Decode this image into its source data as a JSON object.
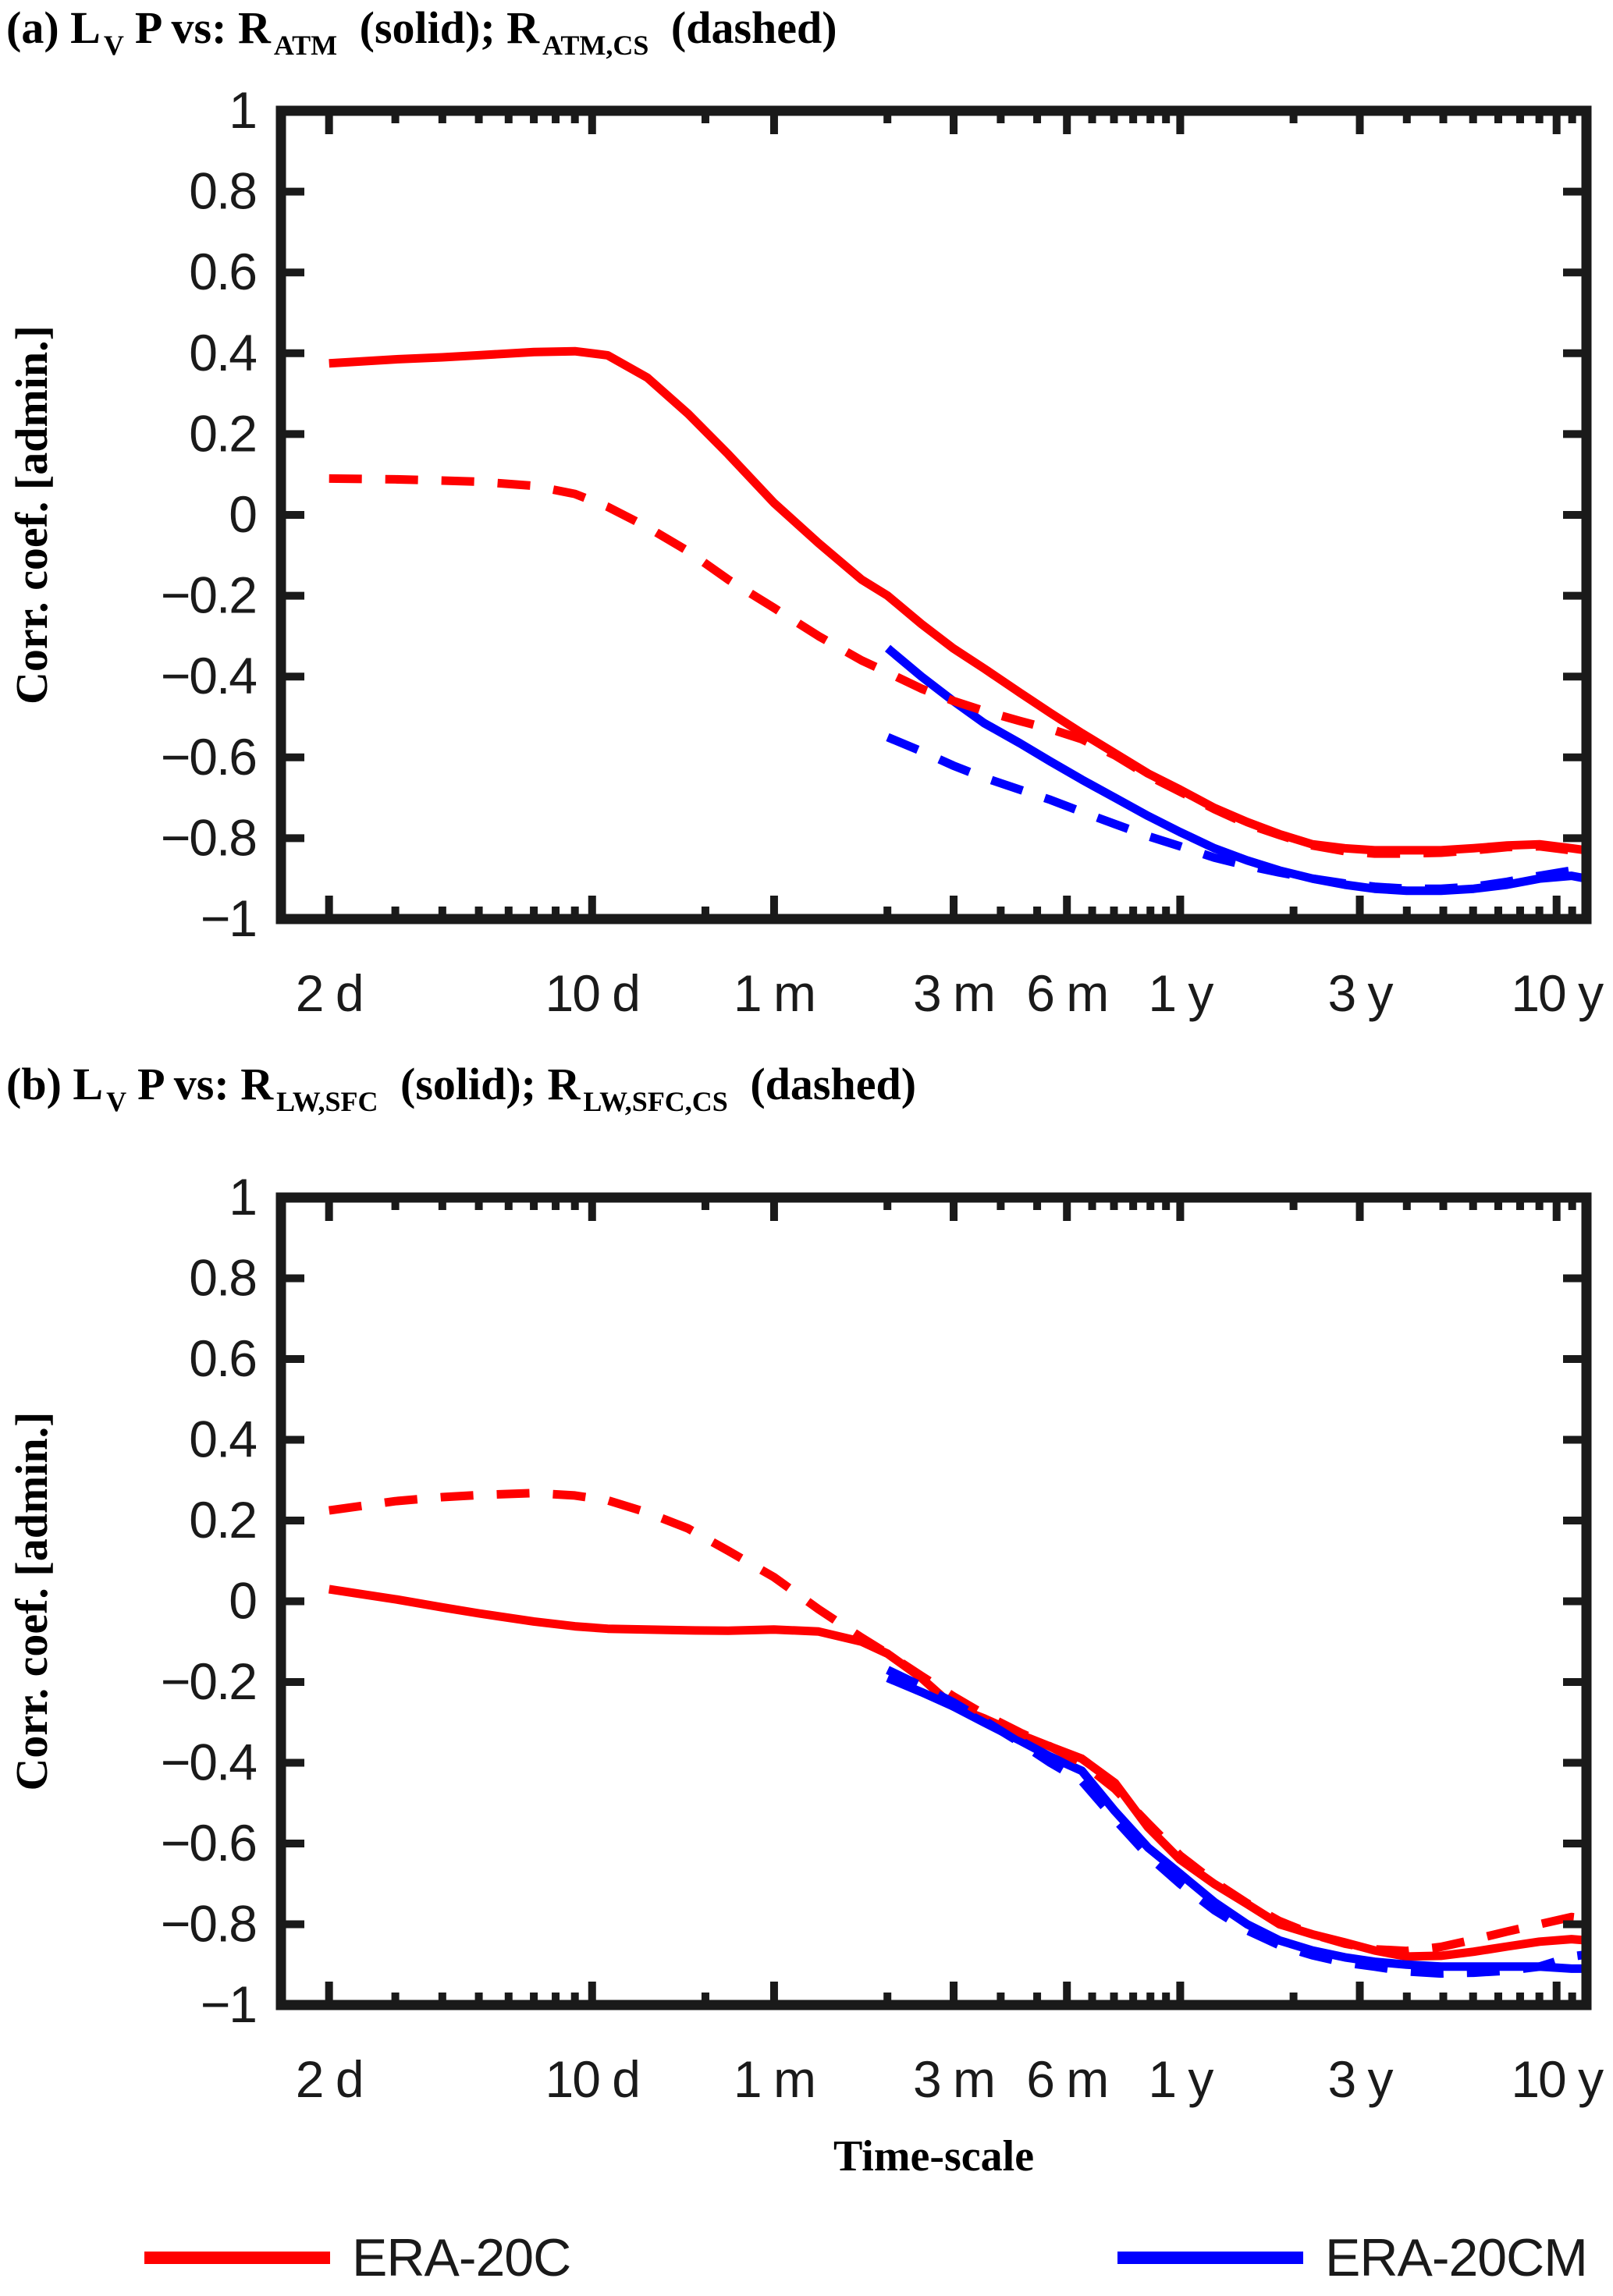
{
  "xlabel": "Time-scale",
  "legend": {
    "position": "bottom",
    "items": [
      {
        "label": "ERA-20C",
        "color": "#ff0000"
      },
      {
        "label": "ERA-20CM",
        "color": "#0000ff"
      }
    ]
  },
  "axis_color": "#1a1a1a",
  "chart_data": [
    {
      "type": "line",
      "panel_label": "(a)",
      "title_segments": [
        {
          "text": "(a) L"
        },
        {
          "text": "V",
          "sub": true
        },
        {
          "text": "P vs: R"
        },
        {
          "text": "ATM",
          "sub": true
        },
        {
          "text": " (solid); R"
        },
        {
          "text": "ATM,CS",
          "sub": true
        },
        {
          "text": " (dashed)"
        }
      ],
      "ylabel": "Corr. coef. [admin.]",
      "x_scale": "log",
      "x_unit": "days",
      "xlim": [
        1.49,
        4385
      ],
      "ylim": [
        -1,
        1
      ],
      "grid": false,
      "x_major_ticks": [
        {
          "t": 2,
          "label": "2 d"
        },
        {
          "t": 10,
          "label": "10 d"
        },
        {
          "t": 30.44,
          "label": "1 m"
        },
        {
          "t": 91.31,
          "label": "3 m"
        },
        {
          "t": 182.62,
          "label": "6 m"
        },
        {
          "t": 365.25,
          "label": "1 y"
        },
        {
          "t": 1095.75,
          "label": "3 y"
        },
        {
          "t": 3652.5,
          "label": "10 y"
        }
      ],
      "x_minor_ticks": [
        3,
        4,
        5,
        6,
        7,
        8,
        9,
        20,
        60.9,
        121.8,
        152.2,
        213.1,
        243.5,
        273.9,
        304.4,
        334.8,
        730.5,
        1461,
        1826.25,
        2191.5,
        2556.75,
        2922,
        3287.25,
        4017.75,
        4383
      ],
      "y_ticks": [
        {
          "v": 1,
          "label": "1"
        },
        {
          "v": 0.8,
          "label": "0.8"
        },
        {
          "v": 0.6,
          "label": "0.6"
        },
        {
          "v": 0.4,
          "label": "0.4"
        },
        {
          "v": 0.2,
          "label": "0.2"
        },
        {
          "v": 0,
          "label": "0"
        },
        {
          "v": -0.2,
          "label": "−0.2"
        },
        {
          "v": -0.4,
          "label": "−0.4"
        },
        {
          "v": -0.6,
          "label": "−0.6"
        },
        {
          "v": -0.8,
          "label": "−0.8"
        },
        {
          "v": -1,
          "label": "−1"
        }
      ],
      "series": [
        {
          "name": "ERA-20C vs R_ATM",
          "color": "#ff0000",
          "style": "solid",
          "x": [
            2,
            3,
            4,
            5,
            7,
            9,
            11,
            14,
            18,
            23,
            30.4,
            40,
            52,
            61,
            75,
            91,
            110,
            137,
            165,
            200,
            245,
            300,
            365,
            450,
            550,
            670,
            820,
            1000,
            1200,
            1460,
            1800,
            2200,
            2700,
            3290,
            4000,
            4385
          ],
          "y": [
            0.375,
            0.385,
            0.39,
            0.395,
            0.403,
            0.405,
            0.395,
            0.34,
            0.25,
            0.15,
            0.03,
            -0.07,
            -0.16,
            -0.2,
            -0.27,
            -0.33,
            -0.38,
            -0.44,
            -0.49,
            -0.54,
            -0.59,
            -0.64,
            -0.68,
            -0.725,
            -0.76,
            -0.79,
            -0.815,
            -0.825,
            -0.83,
            -0.83,
            -0.83,
            -0.825,
            -0.818,
            -0.815,
            -0.825,
            -0.83
          ]
        },
        {
          "name": "ERA-20CM vs R_ATM",
          "color": "#0000ff",
          "style": "solid",
          "x": [
            61,
            75,
            91,
            110,
            137,
            165,
            200,
            245,
            300,
            365,
            450,
            550,
            670,
            820,
            1000,
            1200,
            1460,
            1800,
            2200,
            2700,
            3290,
            4000,
            4385
          ],
          "y": [
            -0.33,
            -0.4,
            -0.46,
            -0.515,
            -0.565,
            -0.61,
            -0.655,
            -0.7,
            -0.745,
            -0.785,
            -0.825,
            -0.855,
            -0.88,
            -0.9,
            -0.915,
            -0.925,
            -0.93,
            -0.93,
            -0.925,
            -0.915,
            -0.9,
            -0.893,
            -0.9
          ]
        },
        {
          "name": "ERA-20C vs R_ATM,CS",
          "color": "#ff0000",
          "style": "dashed",
          "x": [
            2,
            3,
            4,
            5,
            7,
            9,
            11,
            14,
            18,
            23,
            30.4,
            40,
            52,
            61,
            75,
            91,
            110,
            137,
            165,
            200,
            245,
            300,
            365,
            450,
            550,
            670,
            820,
            1000,
            1200,
            1460,
            1800,
            2200,
            2700,
            3290,
            4000,
            4385
          ],
          "y": [
            0.09,
            0.088,
            0.085,
            0.082,
            0.072,
            0.052,
            0.02,
            -0.03,
            -0.09,
            -0.16,
            -0.23,
            -0.3,
            -0.36,
            -0.39,
            -0.43,
            -0.46,
            -0.485,
            -0.51,
            -0.53,
            -0.555,
            -0.595,
            -0.645,
            -0.685,
            -0.728,
            -0.765,
            -0.792,
            -0.818,
            -0.832,
            -0.838,
            -0.838,
            -0.836,
            -0.83,
            -0.822,
            -0.82,
            -0.83,
            -0.836
          ]
        },
        {
          "name": "ERA-20CM vs R_ATM,CS",
          "color": "#0000ff",
          "style": "dashed",
          "x": [
            61,
            75,
            91,
            110,
            137,
            165,
            200,
            245,
            300,
            365,
            450,
            550,
            670,
            820,
            1000,
            1200,
            1460,
            1800,
            2200,
            2700,
            3290,
            4000,
            4385
          ],
          "y": [
            -0.55,
            -0.585,
            -0.62,
            -0.65,
            -0.68,
            -0.705,
            -0.735,
            -0.765,
            -0.795,
            -0.82,
            -0.848,
            -0.868,
            -0.885,
            -0.9,
            -0.912,
            -0.92,
            -0.925,
            -0.925,
            -0.92,
            -0.908,
            -0.893,
            -0.88,
            -0.882
          ]
        }
      ]
    },
    {
      "type": "line",
      "panel_label": "(b)",
      "title_segments": [
        {
          "text": "(b) L"
        },
        {
          "text": "V",
          "sub": true
        },
        {
          "text": "P vs: R"
        },
        {
          "text": "LW,SFC",
          "sub": true
        },
        {
          "text": " (solid); R"
        },
        {
          "text": "LW,SFC,CS",
          "sub": true
        },
        {
          "text": " (dashed)"
        }
      ],
      "ylabel": "Corr. coef. [admin.]",
      "x_scale": "log",
      "x_unit": "days",
      "xlim": [
        1.49,
        4385
      ],
      "ylim": [
        -1,
        1
      ],
      "grid": false,
      "x_major_ticks": [
        {
          "t": 2,
          "label": "2 d"
        },
        {
          "t": 10,
          "label": "10 d"
        },
        {
          "t": 30.44,
          "label": "1 m"
        },
        {
          "t": 91.31,
          "label": "3 m"
        },
        {
          "t": 182.62,
          "label": "6 m"
        },
        {
          "t": 365.25,
          "label": "1 y"
        },
        {
          "t": 1095.75,
          "label": "3 y"
        },
        {
          "t": 3652.5,
          "label": "10 y"
        }
      ],
      "x_minor_ticks": [
        3,
        4,
        5,
        6,
        7,
        8,
        9,
        20,
        60.9,
        121.8,
        152.2,
        213.1,
        243.5,
        273.9,
        304.4,
        334.8,
        730.5,
        1461,
        1826.25,
        2191.5,
        2556.75,
        2922,
        3287.25,
        4017.75,
        4383
      ],
      "y_ticks": [
        {
          "v": 1,
          "label": "1"
        },
        {
          "v": 0.8,
          "label": "0.8"
        },
        {
          "v": 0.6,
          "label": "0.6"
        },
        {
          "v": 0.4,
          "label": "0.4"
        },
        {
          "v": 0.2,
          "label": "0.2"
        },
        {
          "v": 0,
          "label": "0"
        },
        {
          "v": -0.2,
          "label": "−0.2"
        },
        {
          "v": -0.4,
          "label": "−0.4"
        },
        {
          "v": -0.6,
          "label": "−0.6"
        },
        {
          "v": -0.8,
          "label": "−0.8"
        },
        {
          "v": -1,
          "label": "−1"
        }
      ],
      "series": [
        {
          "name": "ERA-20C vs R_LW,SFC",
          "color": "#ff0000",
          "style": "solid",
          "x": [
            2,
            3,
            4,
            5,
            7,
            9,
            11,
            14,
            18,
            23,
            30.4,
            40,
            52,
            61,
            75,
            91,
            110,
            137,
            165,
            200,
            245,
            300,
            365,
            450,
            550,
            670,
            820,
            1000,
            1200,
            1460,
            1800,
            2200,
            2700,
            3290,
            4000,
            4385
          ],
          "y": [
            0.03,
            0.005,
            -0.015,
            -0.03,
            -0.05,
            -0.062,
            -0.068,
            -0.07,
            -0.072,
            -0.073,
            -0.07,
            -0.075,
            -0.1,
            -0.13,
            -0.19,
            -0.26,
            -0.29,
            -0.33,
            -0.36,
            -0.39,
            -0.45,
            -0.56,
            -0.64,
            -0.7,
            -0.75,
            -0.8,
            -0.825,
            -0.845,
            -0.865,
            -0.88,
            -0.878,
            -0.868,
            -0.855,
            -0.843,
            -0.837,
            -0.84
          ]
        },
        {
          "name": "ERA-20CM vs R_LW,SFC",
          "color": "#0000ff",
          "style": "solid",
          "x": [
            61,
            75,
            91,
            110,
            137,
            165,
            200,
            245,
            300,
            365,
            450,
            550,
            670,
            820,
            1000,
            1200,
            1460,
            1800,
            2200,
            2700,
            3290,
            4000,
            4385
          ],
          "y": [
            -0.19,
            -0.225,
            -0.26,
            -0.3,
            -0.345,
            -0.385,
            -0.42,
            -0.52,
            -0.61,
            -0.675,
            -0.745,
            -0.8,
            -0.84,
            -0.865,
            -0.882,
            -0.893,
            -0.9,
            -0.905,
            -0.905,
            -0.905,
            -0.905,
            -0.91,
            -0.91
          ]
        },
        {
          "name": "ERA-20C vs R_LW,SFC,CS",
          "color": "#ff0000",
          "style": "dashed",
          "x": [
            2,
            3,
            4,
            5,
            7,
            9,
            11,
            14,
            18,
            23,
            30.4,
            40,
            52,
            61,
            75,
            91,
            110,
            137,
            165,
            200,
            245,
            300,
            365,
            450,
            550,
            670,
            820,
            1000,
            1200,
            1460,
            1800,
            2200,
            2700,
            3290,
            4000,
            4385
          ],
          "y": [
            0.225,
            0.248,
            0.258,
            0.263,
            0.268,
            0.262,
            0.25,
            0.22,
            0.18,
            0.125,
            0.06,
            -0.02,
            -0.09,
            -0.13,
            -0.185,
            -0.235,
            -0.28,
            -0.325,
            -0.36,
            -0.4,
            -0.465,
            -0.55,
            -0.63,
            -0.695,
            -0.748,
            -0.792,
            -0.825,
            -0.848,
            -0.862,
            -0.866,
            -0.856,
            -0.838,
            -0.818,
            -0.8,
            -0.782,
            -0.786
          ]
        },
        {
          "name": "ERA-20CM vs R_LW,SFC,CS",
          "color": "#0000ff",
          "style": "dashed",
          "x": [
            61,
            75,
            91,
            110,
            137,
            165,
            200,
            245,
            300,
            365,
            450,
            550,
            670,
            820,
            1000,
            1200,
            1460,
            1800,
            2200,
            2700,
            3290,
            4000,
            4385
          ],
          "y": [
            -0.17,
            -0.21,
            -0.25,
            -0.295,
            -0.35,
            -0.4,
            -0.445,
            -0.54,
            -0.63,
            -0.7,
            -0.765,
            -0.815,
            -0.852,
            -0.877,
            -0.895,
            -0.905,
            -0.917,
            -0.922,
            -0.92,
            -0.915,
            -0.905,
            -0.88,
            -0.875
          ]
        }
      ]
    }
  ]
}
